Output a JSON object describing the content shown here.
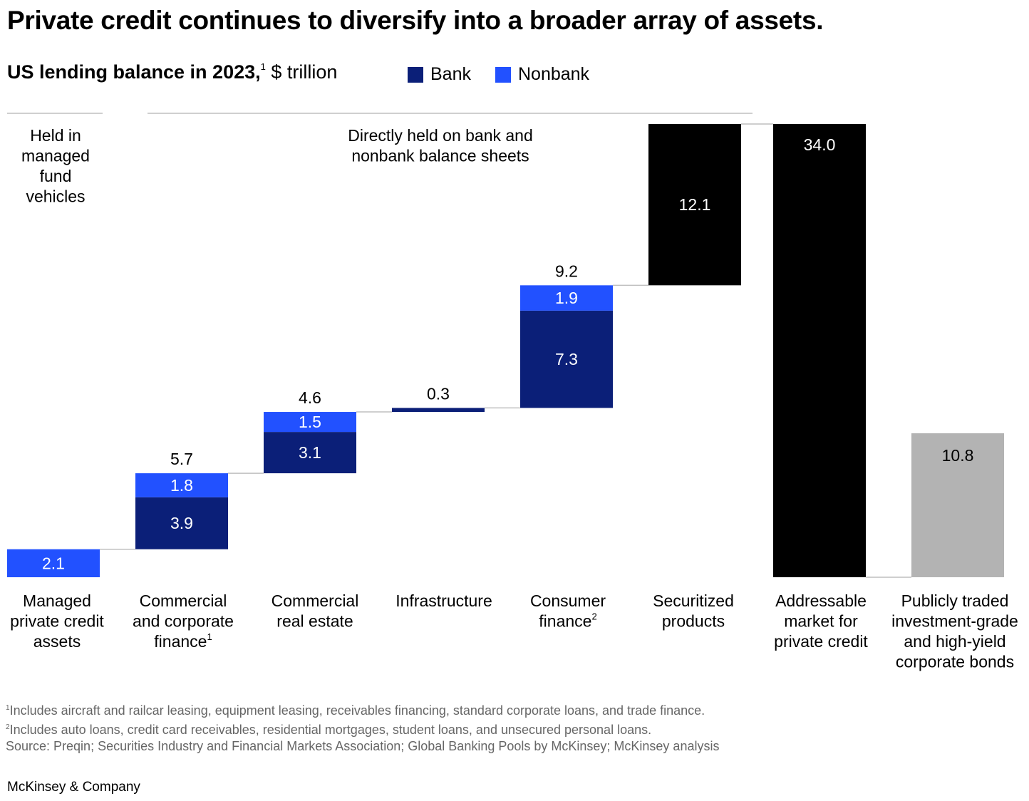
{
  "title": "Private credit continues to diversify into a broader array of assets.",
  "subtitle": {
    "bold": "US lending balance in 2023,",
    "sup": "1",
    "unit": "$ trillion"
  },
  "legend": [
    {
      "label": "Bank",
      "color": "#0b1f78"
    },
    {
      "label": "Nonbank",
      "color": "#2251ff"
    }
  ],
  "colors": {
    "bank": "#0b1f78",
    "nonbank": "#2251ff",
    "total": "#000000",
    "bonds": "#b3b3b3",
    "connector": "#bfbfbf"
  },
  "group_labels": {
    "held": "Held in managed fund vehicles",
    "direct": "Directly held on bank and nonbank balance sheets"
  },
  "chart_data": {
    "type": "bar",
    "subtype": "waterfall",
    "title": "US lending balance in 2023, $ trillion",
    "categories": [
      "Managed private credit assets",
      "Commercial and corporate finance",
      "Commercial real estate",
      "Infrastructure",
      "Consumer finance",
      "Securitized products",
      "Addressable market for private credit",
      "Publicly traded investment-grade and high-yield corporate bonds"
    ],
    "category_superscripts": [
      "",
      "1",
      "",
      "",
      "2",
      "",
      "",
      ""
    ],
    "series": [
      {
        "name": "Bank",
        "values": [
          null,
          3.9,
          3.1,
          0.3,
          7.3,
          null,
          null,
          null
        ]
      },
      {
        "name": "Nonbank",
        "values": [
          2.1,
          1.8,
          1.5,
          null,
          1.9,
          null,
          null,
          null
        ]
      },
      {
        "name": "Securitized",
        "values": [
          null,
          null,
          null,
          null,
          null,
          12.1,
          null,
          null
        ]
      },
      {
        "name": "Total",
        "values": [
          null,
          null,
          null,
          null,
          null,
          null,
          34.0,
          null
        ]
      },
      {
        "name": "Bonds",
        "values": [
          null,
          null,
          null,
          null,
          null,
          null,
          null,
          10.8
        ]
      }
    ],
    "segment_labels": [
      [
        "2.1"
      ],
      [
        "3.9",
        "1.8"
      ],
      [
        "3.1",
        "1.5"
      ],
      [
        ""
      ],
      [
        "7.3",
        "1.9"
      ],
      [
        "12.1"
      ],
      [
        "34.0"
      ],
      [
        "10.8"
      ]
    ],
    "totals": [
      "",
      "5.7",
      "4.6",
      "0.3",
      "9.2",
      "",
      "",
      ""
    ],
    "ylim": [
      0,
      34.0
    ],
    "grid": false,
    "legend": "top"
  },
  "footnotes": [
    {
      "sup": "1",
      "text": "Includes aircraft and railcar leasing, equipment leasing, receivables financing, standard corporate loans, and trade finance."
    },
    {
      "sup": "2",
      "text": "Includes auto loans, credit card receivables, residential mortgages, student loans, and unsecured personal loans."
    },
    {
      "sup": "",
      "text": " Source: Preqin; Securities Industry and Financial Markets Association; Global Banking Pools by McKinsey; McKinsey analysis"
    }
  ],
  "brand": "McKinsey & Company"
}
